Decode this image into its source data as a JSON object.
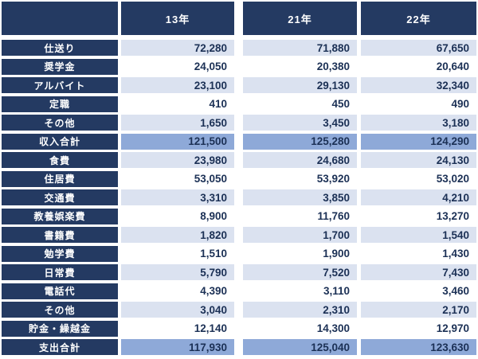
{
  "colors": {
    "navy_bg": "#243a62",
    "stripe_bg": "#dbe2f0",
    "white_bg": "#ffffff",
    "total_bg": "#8ea9d8",
    "label_text": "#ffffff",
    "value_text": "#1b3055"
  },
  "chart_data": {
    "type": "table",
    "columns": [
      "13年",
      "21年",
      "22年"
    ],
    "rows": [
      {
        "label": "仕送り",
        "values": [
          72280,
          71880,
          67650
        ],
        "band": "stripe"
      },
      {
        "label": "奨学金",
        "values": [
          24050,
          20380,
          20640
        ],
        "band": "white"
      },
      {
        "label": "アルバイト",
        "values": [
          23100,
          29130,
          32340
        ],
        "band": "stripe"
      },
      {
        "label": "定職",
        "values": [
          410,
          450,
          490
        ],
        "band": "white"
      },
      {
        "label": "その他",
        "values": [
          1650,
          3450,
          3180
        ],
        "band": "stripe"
      },
      {
        "label": "収入合計",
        "values": [
          121500,
          125280,
          124290
        ],
        "band": "total"
      },
      {
        "label": "食費",
        "values": [
          23980,
          24680,
          24130
        ],
        "band": "stripe"
      },
      {
        "label": "住居費",
        "values": [
          53050,
          53920,
          53020
        ],
        "band": "white"
      },
      {
        "label": "交通費",
        "values": [
          3310,
          3850,
          4210
        ],
        "band": "stripe"
      },
      {
        "label": "教養娯楽費",
        "values": [
          8900,
          11760,
          13270
        ],
        "band": "white"
      },
      {
        "label": "書籍費",
        "values": [
          1820,
          1700,
          1540
        ],
        "band": "stripe"
      },
      {
        "label": "勉学費",
        "values": [
          1510,
          1900,
          1430
        ],
        "band": "white"
      },
      {
        "label": "日常費",
        "values": [
          5790,
          7520,
          7430
        ],
        "band": "stripe"
      },
      {
        "label": "電話代",
        "values": [
          4390,
          3110,
          3460
        ],
        "band": "white"
      },
      {
        "label": "その他",
        "values": [
          3040,
          2310,
          2170
        ],
        "band": "stripe"
      },
      {
        "label": "貯金・繰越金",
        "values": [
          12140,
          14300,
          12970
        ],
        "band": "white"
      },
      {
        "label": "支出合計",
        "values": [
          117930,
          125040,
          123630
        ],
        "band": "total"
      }
    ]
  }
}
